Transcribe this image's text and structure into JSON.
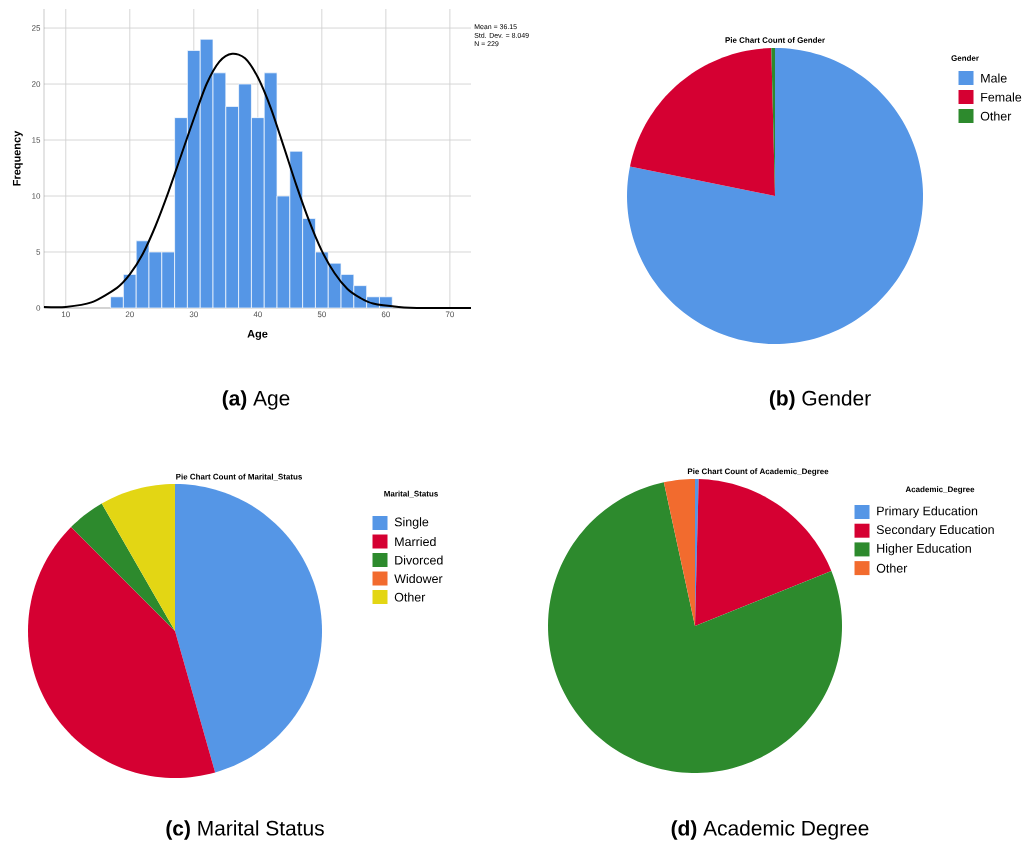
{
  "chart_data": [
    {
      "type": "histogram",
      "xlabel": "Age",
      "ylabel": "Frequency",
      "bins": [
        17,
        19,
        21,
        23,
        25,
        27,
        29,
        31,
        33,
        35,
        37,
        39,
        41,
        43,
        45,
        47,
        49,
        51,
        53,
        55,
        57,
        59,
        61
      ],
      "values": [
        1,
        3,
        6,
        5,
        5,
        17,
        23,
        24,
        21,
        18,
        20,
        17,
        21,
        10,
        14,
        8,
        5,
        4,
        3,
        2,
        1,
        1
      ],
      "color": "#5596e6",
      "xlim": [
        6.6,
        73.3
      ],
      "ylim": [
        0,
        26.7
      ],
      "xticks": [
        10,
        20,
        30,
        40,
        50,
        60,
        70
      ],
      "yticks": [
        0,
        5,
        10,
        15,
        20,
        25
      ],
      "grid": true,
      "series": [
        {
          "type": "line",
          "color": "#000000",
          "x": [
            6.6,
            10,
            14,
            18,
            20,
            22,
            24,
            26,
            28,
            30,
            32,
            34,
            36,
            38,
            40,
            42,
            44,
            46,
            48,
            50,
            52,
            54,
            56,
            58,
            62,
            66,
            73.3
          ],
          "values": [
            0.1,
            0.1,
            0.5,
            1.8,
            3.0,
            4.8,
            7.3,
            10.3,
            13.6,
            16.9,
            20.0,
            22.0,
            22.7,
            22.3,
            20.6,
            17.9,
            14.5,
            11.0,
            7.8,
            5.1,
            3.1,
            1.7,
            0.9,
            0.4,
            0.1,
            0,
            0
          ]
        }
      ],
      "annotations": [
        "Mean = 36.15",
        "Std. Dev. = 8.049",
        "N = 229",
        "**(a)** Age"
      ]
    },
    {
      "type": "pie",
      "title": "Pie Chart Count of Gender",
      "legend_title": "Gender",
      "legend": "right",
      "categories": [
        "Male",
        "Female",
        "Other"
      ],
      "values": [
        78.2,
        21.4,
        0.4
      ],
      "colors": [
        "#5596e6",
        "#d50032",
        "#2d8a2d"
      ],
      "annotations": [
        "**(b)** Gender"
      ]
    },
    {
      "type": "pie",
      "title": "Pie Chart Count of Marital_Status",
      "legend_title": "Marital_Status",
      "legend": "right",
      "categories": [
        "Single",
        "Married",
        "Divorced",
        "Widower",
        "Other"
      ],
      "values": [
        45.6,
        41.9,
        4.2,
        0,
        8.3
      ],
      "colors": [
        "#5596e6",
        "#d50032",
        "#2d8a2d",
        "#f26b2e",
        "#e3d614"
      ],
      "annotations": [
        "**(c)** Marital Status"
      ]
    },
    {
      "type": "pie",
      "title": "Pie Chart Count of Academic_Degree",
      "legend_title": "Academic_Degree",
      "legend": "right",
      "categories": [
        "Primary Education",
        "Secondary Education",
        "Higher Education",
        "Other"
      ],
      "values": [
        0.4,
        18.5,
        77.7,
        3.4
      ],
      "colors": [
        "#5596e6",
        "#d50032",
        "#2d8a2d",
        "#f26b2e"
      ],
      "annotations": [
        "**(d)** Academic Degree"
      ]
    }
  ]
}
